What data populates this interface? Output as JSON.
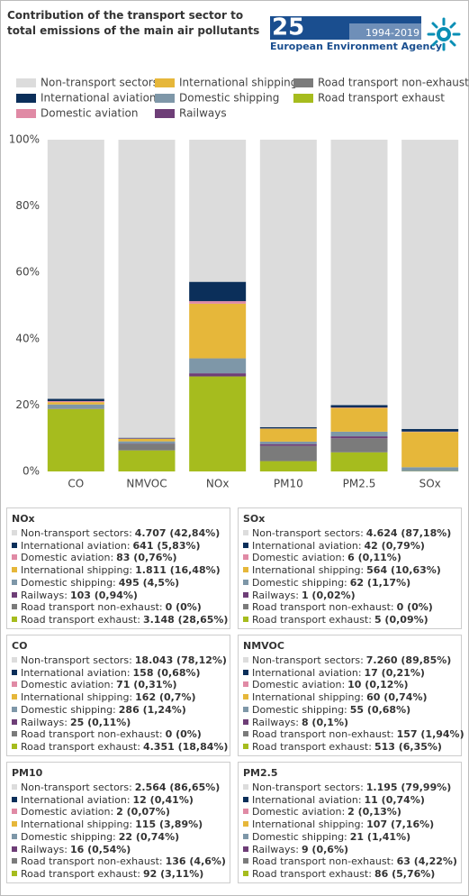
{
  "chart_data": {
    "type": "stacked_bar",
    "title": "Contribution of the transport sector to total emissions of the main air pollutants",
    "categories": [
      "CO",
      "NMVOC",
      "NOx",
      "PM10",
      "PM2.5",
      "SOx"
    ],
    "series": [
      {
        "name": "Non-transport sectors",
        "color": "#dcdcdc",
        "values": [
          78.12,
          89.85,
          42.84,
          86.65,
          79.99,
          87.18
        ]
      },
      {
        "name": "International aviation",
        "color": "#0b2f5a",
        "values": [
          0.68,
          0.21,
          5.83,
          0.41,
          0.74,
          0.79
        ]
      },
      {
        "name": "Domestic aviation",
        "color": "#e08aa5",
        "values": [
          0.31,
          0.12,
          0.76,
          0.07,
          0.13,
          0.11
        ]
      },
      {
        "name": "International shipping",
        "color": "#e6b73a",
        "values": [
          0.7,
          0.74,
          16.48,
          3.89,
          7.16,
          10.63
        ]
      },
      {
        "name": "Domestic shipping",
        "color": "#7e97a8",
        "values": [
          1.24,
          0.68,
          4.5,
          0.74,
          1.41,
          1.17
        ]
      },
      {
        "name": "Railways",
        "color": "#6e3e77",
        "values": [
          0.11,
          0.1,
          0.94,
          0.54,
          0.6,
          0.02
        ]
      },
      {
        "name": "Road transport non-exhaust",
        "color": "#7b7b7b",
        "values": [
          0,
          1.94,
          0,
          4.6,
          4.22,
          0
        ]
      },
      {
        "name": "Road transport exhaust",
        "color": "#a6bc1e",
        "values": [
          18.84,
          6.35,
          28.65,
          3.11,
          5.76,
          0.09
        ]
      }
    ],
    "ylim": [
      0,
      100
    ],
    "yticks": [
      {
        "value": 0,
        "label": "0%"
      },
      {
        "value": 20,
        "label": "20%"
      },
      {
        "value": 40,
        "label": "40%"
      },
      {
        "value": 60,
        "label": "60%"
      },
      {
        "value": 80,
        "label": "80%"
      },
      {
        "value": 100,
        "label": "100%"
      }
    ],
    "grid": false
  },
  "logo": {
    "number": "25",
    "years": "1994-2019",
    "agency": "European Environment Agency"
  },
  "row_labels": [
    "Non-transport sectors:",
    "International aviation:",
    "Domestic aviation:",
    "International shipping:",
    "Domestic shipping:",
    "Railways:",
    "Road transport non-exhaust:",
    "Road transport exhaust:"
  ],
  "panels": [
    {
      "title": "NOx",
      "values": [
        "4.707 (42,84%)",
        "641 (5,83%)",
        "83 (0,76%)",
        "1.811 (16,48%)",
        "495 (4,5%)",
        "103 (0,94%)",
        "0 (0%)",
        "3.148 (28,65%)"
      ]
    },
    {
      "title": "SOx",
      "values": [
        "4.624 (87,18%)",
        "42 (0,79%)",
        "6 (0,11%)",
        "564 (10,63%)",
        "62 (1,17%)",
        "1 (0,02%)",
        "0 (0%)",
        "5 (0,09%)"
      ]
    },
    {
      "title": "CO",
      "values": [
        "18.043 (78,12%)",
        "158 (0,68%)",
        "71 (0,31%)",
        "162 (0,7%)",
        "286 (1,24%)",
        "25 (0,11%)",
        "0 (0%)",
        "4.351 (18,84%)"
      ]
    },
    {
      "title": "NMVOC",
      "values": [
        "7.260 (89,85%)",
        "17 (0,21%)",
        "10 (0,12%)",
        "60 (0,74%)",
        "55 (0,68%)",
        "8 (0,1%)",
        "157 (1,94%)",
        "513 (6,35%)"
      ]
    },
    {
      "title": "PM10",
      "values": [
        "2.564 (86,65%)",
        "12 (0,41%)",
        "2 (0,07%)",
        "115 (3,89%)",
        "22 (0,74%)",
        "16 (0,54%)",
        "136 (4,6%)",
        "92 (3,11%)"
      ]
    },
    {
      "title": "PM2.5",
      "values": [
        "1.195 (79,99%)",
        "11 (0,74%)",
        "2 (0,13%)",
        "107 (7,16%)",
        "21 (1,41%)",
        "9 (0,6%)",
        "63 (4,22%)",
        "86 (5,76%)"
      ]
    }
  ]
}
